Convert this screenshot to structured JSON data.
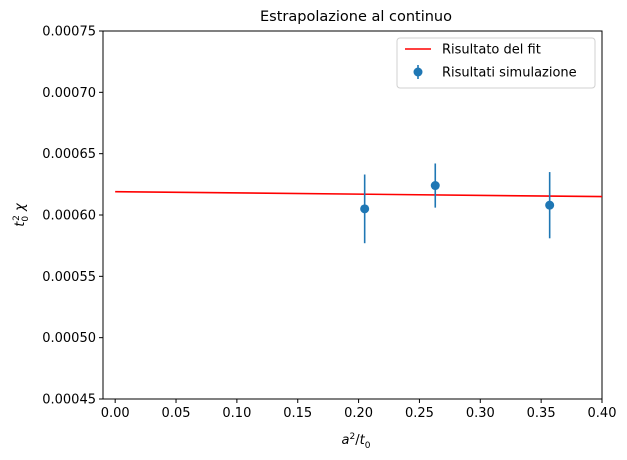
{
  "chart_data": {
    "type": "scatter",
    "title": "Estrapolazione al continuo",
    "xlabel": "a²/t₀",
    "ylabel": "t₀² χ",
    "xlim": [
      -0.01,
      0.4
    ],
    "ylim": [
      0.00045,
      0.00075
    ],
    "x_ticks": [
      "0.00",
      "0.05",
      "0.10",
      "0.15",
      "0.20",
      "0.25",
      "0.30",
      "0.35",
      "0.40"
    ],
    "y_ticks": [
      "0.00045",
      "0.00050",
      "0.00055",
      "0.00060",
      "0.00065",
      "0.00070",
      "0.00075"
    ],
    "grid": false,
    "legend_position": "top-right",
    "series": [
      {
        "name": "Risultato del fit",
        "kind": "line",
        "color": "#ff0000",
        "x": [
          0.0,
          0.4
        ],
        "y": [
          0.000619,
          0.000615
        ]
      },
      {
        "name": "Risultati simulazione",
        "kind": "errorbar",
        "color": "#1f77b4",
        "x": [
          0.205,
          0.263,
          0.357
        ],
        "y": [
          0.000605,
          0.000624,
          0.000608
        ],
        "yerr": [
          2.8e-05,
          1.8e-05,
          2.7e-05
        ]
      }
    ]
  }
}
